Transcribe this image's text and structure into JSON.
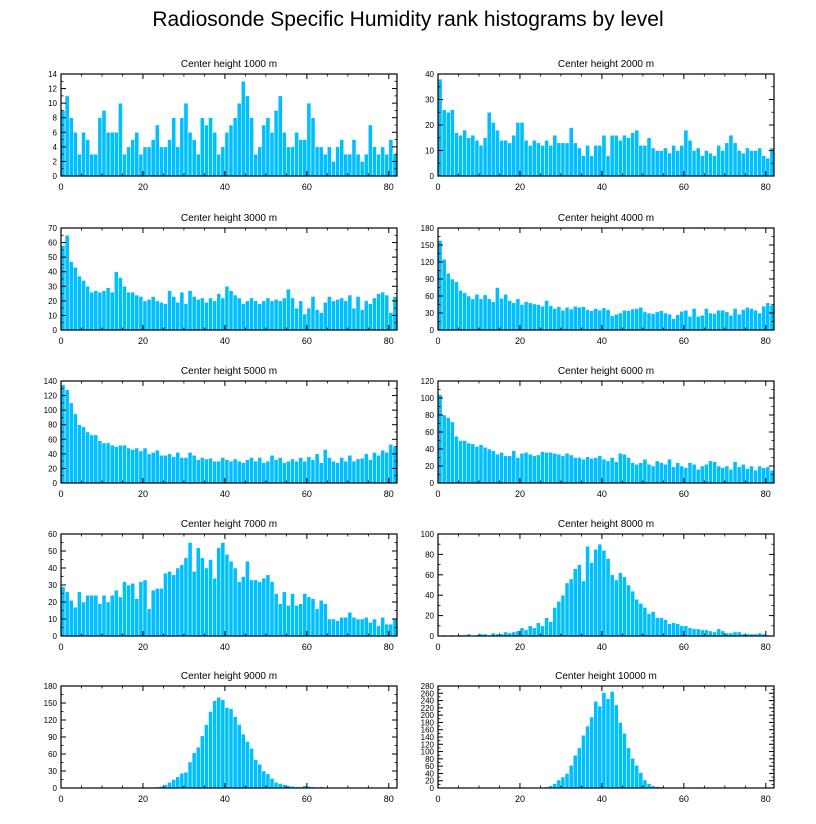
{
  "figure": {
    "title": "Radiosonde Specific Humidity rank histograms by level"
  },
  "style": {
    "bar_color": "#00bfff",
    "bar_edge": "#ffffff",
    "axis_color": "#000000"
  },
  "chart_data": [
    {
      "type": "bar",
      "title": "Center height 1000 m",
      "xlim": [
        0,
        82
      ],
      "ylim": [
        0,
        14
      ],
      "xticks": [
        0,
        20,
        40,
        60,
        80
      ],
      "yticks": [
        0,
        2,
        4,
        6,
        8,
        10,
        12,
        14
      ],
      "values": [
        9,
        11,
        8,
        6,
        3,
        6,
        5,
        3,
        3,
        8,
        9,
        6,
        6,
        6,
        10,
        3,
        4,
        5,
        6,
        3,
        4,
        4,
        5,
        7,
        4,
        4,
        5,
        8,
        4,
        8,
        10,
        6,
        5,
        3,
        8,
        7,
        8,
        6,
        3,
        4,
        6,
        7,
        8,
        10,
        13,
        11,
        8,
        3,
        4,
        7,
        8,
        6,
        9,
        11,
        6,
        4,
        4,
        6,
        5,
        5,
        10,
        8,
        4,
        4,
        3,
        4,
        2,
        4,
        5,
        3,
        3,
        5,
        3,
        2,
        3,
        7,
        4,
        3,
        4,
        3,
        5,
        3
      ]
    },
    {
      "type": "bar",
      "title": "Center height 2000 m",
      "xlim": [
        0,
        82
      ],
      "ylim": [
        0,
        40
      ],
      "xticks": [
        0,
        20,
        40,
        60,
        80
      ],
      "yticks": [
        0,
        10,
        20,
        30,
        40
      ],
      "values": [
        38,
        26,
        25,
        26,
        17,
        16,
        18,
        15,
        16,
        14,
        12,
        15,
        25,
        21,
        18,
        14,
        14,
        13,
        16,
        21,
        21,
        14,
        12,
        14,
        13,
        12,
        14,
        12,
        16,
        13,
        13,
        13,
        19,
        13,
        11,
        8,
        12,
        8,
        12,
        12,
        16,
        8,
        16,
        16,
        14,
        16,
        15,
        17,
        18,
        12,
        12,
        15,
        11,
        10,
        10,
        11,
        9,
        12,
        10,
        12,
        18,
        14,
        10,
        11,
        8,
        10,
        9,
        8,
        12,
        10,
        13,
        16,
        13,
        10,
        9,
        11,
        10,
        10,
        11,
        8,
        7,
        11
      ]
    },
    {
      "type": "bar",
      "title": "Center height 3000 m",
      "xlim": [
        0,
        82
      ],
      "ylim": [
        0,
        70
      ],
      "xticks": [
        0,
        20,
        40,
        60,
        80
      ],
      "yticks": [
        0,
        10,
        20,
        30,
        40,
        50,
        60,
        70
      ],
      "values": [
        58,
        65,
        47,
        43,
        37,
        34,
        30,
        26,
        27,
        26,
        27,
        29,
        26,
        40,
        36,
        30,
        26,
        26,
        24,
        23,
        20,
        21,
        23,
        20,
        19,
        18,
        27,
        23,
        19,
        26,
        18,
        27,
        23,
        21,
        22,
        19,
        22,
        20,
        25,
        22,
        30,
        27,
        24,
        22,
        18,
        20,
        22,
        20,
        18,
        20,
        22,
        20,
        21,
        20,
        22,
        28,
        22,
        15,
        20,
        11,
        15,
        23,
        14,
        12,
        19,
        23,
        20,
        21,
        22,
        20,
        24,
        15,
        23,
        14,
        20,
        18,
        22,
        25,
        26,
        24,
        12,
        23
      ]
    },
    {
      "type": "bar",
      "title": "Center height 4000 m",
      "xlim": [
        0,
        82
      ],
      "ylim": [
        0,
        180
      ],
      "xticks": [
        0,
        20,
        40,
        60,
        80
      ],
      "yticks": [
        0,
        30,
        60,
        90,
        120,
        150,
        180
      ],
      "values": [
        158,
        125,
        100,
        90,
        85,
        70,
        66,
        60,
        55,
        63,
        55,
        62,
        55,
        50,
        75,
        56,
        63,
        52,
        48,
        55,
        45,
        50,
        48,
        46,
        45,
        42,
        52,
        43,
        38,
        41,
        35,
        40,
        37,
        42,
        40,
        41,
        36,
        34,
        38,
        35,
        39,
        36,
        25,
        28,
        30,
        35,
        34,
        37,
        38,
        40,
        32,
        30,
        29,
        32,
        34,
        30,
        28,
        20,
        27,
        33,
        35,
        24,
        38,
        24,
        26,
        38,
        30,
        29,
        35,
        35,
        32,
        26,
        38,
        28,
        36,
        40,
        38,
        35,
        30,
        42,
        48,
        44
      ]
    },
    {
      "type": "bar",
      "title": "Center height 5000 m",
      "xlim": [
        0,
        82
      ],
      "ylim": [
        0,
        140
      ],
      "xticks": [
        0,
        20,
        40,
        60,
        80
      ],
      "yticks": [
        0,
        20,
        40,
        60,
        80,
        100,
        120,
        140
      ],
      "values": [
        135,
        128,
        110,
        95,
        80,
        77,
        70,
        66,
        66,
        58,
        55,
        55,
        52,
        50,
        52,
        52,
        48,
        46,
        48,
        44,
        48,
        40,
        42,
        45,
        38,
        38,
        40,
        36,
        42,
        35,
        35,
        42,
        38,
        32,
        35,
        33,
        34,
        30,
        30,
        35,
        32,
        30,
        33,
        30,
        28,
        32,
        35,
        30,
        35,
        28,
        30,
        38,
        32,
        35,
        28,
        30,
        33,
        30,
        35,
        30,
        36,
        32,
        40,
        28,
        46,
        35,
        30,
        28,
        35,
        30,
        38,
        30,
        33,
        34,
        40,
        32,
        42,
        38,
        45,
        42,
        53,
        50
      ]
    },
    {
      "type": "bar",
      "title": "Center height 6000 m",
      "xlim": [
        0,
        82
      ],
      "ylim": [
        0,
        120
      ],
      "xticks": [
        0,
        20,
        40,
        60,
        80
      ],
      "yticks": [
        0,
        20,
        40,
        60,
        80,
        100,
        120
      ],
      "values": [
        104,
        80,
        77,
        72,
        55,
        50,
        50,
        47,
        46,
        43,
        45,
        42,
        40,
        38,
        34,
        36,
        32,
        32,
        38,
        30,
        35,
        36,
        34,
        32,
        33,
        37,
        36,
        36,
        35,
        34,
        32,
        35,
        33,
        30,
        30,
        28,
        31,
        29,
        30,
        32,
        28,
        26,
        30,
        25,
        35,
        34,
        30,
        24,
        22,
        24,
        28,
        22,
        20,
        26,
        24,
        22,
        28,
        19,
        24,
        20,
        18,
        24,
        22,
        16,
        20,
        22,
        26,
        25,
        20,
        18,
        20,
        16,
        25,
        19,
        22,
        17,
        20,
        15,
        20,
        18,
        19,
        15
      ]
    },
    {
      "type": "bar",
      "title": "Center height 7000 m",
      "xlim": [
        0,
        82
      ],
      "ylim": [
        0,
        60
      ],
      "xticks": [
        0,
        20,
        40,
        60,
        80
      ],
      "yticks": [
        0,
        10,
        20,
        30,
        40,
        50,
        60
      ],
      "values": [
        29,
        26,
        21,
        17,
        26,
        20,
        24,
        24,
        24,
        19,
        24,
        20,
        24,
        27,
        23,
        32,
        30,
        31,
        22,
        32,
        33,
        16,
        27,
        28,
        28,
        37,
        38,
        36,
        40,
        42,
        46,
        55,
        38,
        52,
        46,
        40,
        45,
        34,
        52,
        55,
        48,
        44,
        40,
        32,
        35,
        44,
        33,
        33,
        32,
        34,
        36,
        32,
        25,
        19,
        26,
        18,
        25,
        18,
        19,
        25,
        23,
        22,
        16,
        21,
        19,
        10,
        10,
        9,
        11,
        11,
        14,
        11,
        10,
        10,
        11,
        8,
        10,
        6,
        11,
        7,
        7,
        10
      ]
    },
    {
      "type": "bar",
      "title": "Center height 8000 m",
      "xlim": [
        0,
        82
      ],
      "ylim": [
        0,
        100
      ],
      "xticks": [
        0,
        20,
        40,
        60,
        80
      ],
      "yticks": [
        0,
        20,
        40,
        60,
        80,
        100
      ],
      "values": [
        0,
        1,
        0,
        1,
        0,
        1,
        1,
        2,
        0,
        1,
        2,
        2,
        1,
        3,
        2,
        2,
        4,
        3,
        4,
        5,
        8,
        6,
        10,
        8,
        13,
        10,
        18,
        14,
        28,
        34,
        40,
        52,
        56,
        66,
        70,
        54,
        88,
        72,
        85,
        90,
        84,
        76,
        60,
        55,
        62,
        58,
        50,
        44,
        36,
        32,
        28,
        22,
        24,
        18,
        18,
        16,
        12,
        13,
        12,
        10,
        10,
        8,
        7,
        7,
        6,
        6,
        5,
        4,
        7,
        5,
        3,
        3,
        4,
        4,
        2,
        2,
        2,
        2,
        3,
        2,
        1,
        0
      ]
    },
    {
      "type": "bar",
      "title": "Center height 9000 m",
      "xlim": [
        0,
        82
      ],
      "ylim": [
        0,
        180
      ],
      "xticks": [
        0,
        20,
        40,
        60,
        80
      ],
      "yticks": [
        0,
        30,
        60,
        90,
        120,
        150,
        180
      ],
      "values": [
        0,
        0,
        0,
        0,
        0,
        0,
        0,
        0,
        0,
        0,
        0,
        0,
        0,
        0,
        0,
        0,
        0,
        1,
        1,
        1,
        1,
        1,
        1,
        2,
        3,
        6,
        10,
        15,
        20,
        26,
        28,
        46,
        62,
        72,
        92,
        112,
        135,
        154,
        160,
        156,
        142,
        140,
        126,
        112,
        95,
        82,
        70,
        50,
        42,
        30,
        25,
        17,
        10,
        8,
        6,
        4,
        3,
        2,
        2,
        4,
        3,
        2,
        1,
        2,
        1,
        1,
        0,
        0,
        0,
        0,
        0,
        0,
        0,
        0,
        0,
        0,
        0,
        0,
        0,
        0,
        0,
        0
      ]
    },
    {
      "type": "bar",
      "title": "Center height 10000 m",
      "xlim": [
        0,
        82
      ],
      "ylim": [
        0,
        280
      ],
      "xticks": [
        0,
        20,
        40,
        60,
        80
      ],
      "yticks": [
        0,
        20,
        40,
        60,
        80,
        100,
        120,
        140,
        160,
        180,
        200,
        220,
        240,
        260,
        280
      ],
      "values": [
        0,
        0,
        0,
        0,
        0,
        0,
        0,
        0,
        0,
        0,
        0,
        0,
        0,
        0,
        0,
        0,
        0,
        0,
        0,
        0,
        0,
        0,
        1,
        1,
        1,
        2,
        3,
        6,
        12,
        22,
        30,
        40,
        62,
        90,
        110,
        145,
        170,
        195,
        238,
        225,
        262,
        245,
        265,
        228,
        180,
        150,
        110,
        82,
        62,
        42,
        22,
        12,
        6,
        4,
        3,
        2,
        2,
        1,
        1,
        1,
        0,
        0,
        0,
        0,
        0,
        0,
        0,
        0,
        0,
        0,
        0,
        0,
        0,
        0,
        0,
        0,
        0,
        0,
        0,
        0,
        0,
        0
      ]
    }
  ]
}
